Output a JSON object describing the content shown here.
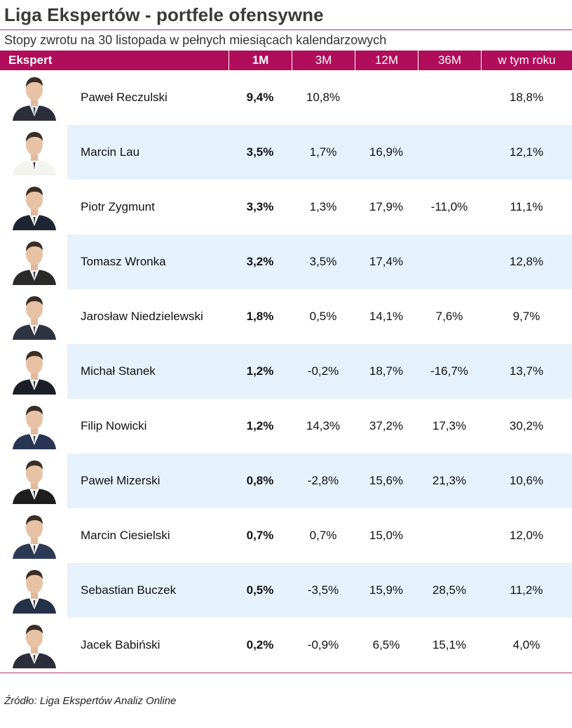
{
  "title": "Liga Ekspertów - portfele ofensywne",
  "subtitle": "Stopy zwrotu na 30 listopada w pełnych miesiącach kalendarzowych",
  "headers": {
    "expert": "Ekspert",
    "m1": "1M",
    "m3": "3M",
    "m12": "12M",
    "m36": "36M",
    "ytd": "w tym roku"
  },
  "rows": [
    {
      "name": "Paweł Reczulski",
      "m1": "9,4%",
      "m3": "10,8%",
      "m12": "",
      "m36": "",
      "ytd": "18,8%"
    },
    {
      "name": "Marcin Lau",
      "m1": "3,5%",
      "m3": "1,7%",
      "m12": "16,9%",
      "m36": "",
      "ytd": "12,1%"
    },
    {
      "name": "Piotr Zygmunt",
      "m1": "3,3%",
      "m3": "1,3%",
      "m12": "17,9%",
      "m36": "-11,0%",
      "ytd": "11,1%"
    },
    {
      "name": "Tomasz Wronka",
      "m1": "3,2%",
      "m3": "3,5%",
      "m12": "17,4%",
      "m36": "",
      "ytd": "12,8%"
    },
    {
      "name": "Jarosław Niedzielewski",
      "m1": "1,8%",
      "m3": "0,5%",
      "m12": "14,1%",
      "m36": "7,6%",
      "ytd": "9,7%"
    },
    {
      "name": "Michał Stanek",
      "m1": "1,2%",
      "m3": "-0,2%",
      "m12": "18,7%",
      "m36": "-16,7%",
      "ytd": "13,7%"
    },
    {
      "name": "Filip Nowicki",
      "m1": "1,2%",
      "m3": "14,3%",
      "m12": "37,2%",
      "m36": "17,3%",
      "ytd": "30,2%"
    },
    {
      "name": "Paweł Mizerski",
      "m1": "0,8%",
      "m3": "-2,8%",
      "m12": "15,6%",
      "m36": "21,3%",
      "ytd": "10,6%"
    },
    {
      "name": "Marcin Ciesielski",
      "m1": "0,7%",
      "m3": "0,7%",
      "m12": "15,0%",
      "m36": "",
      "ytd": "12,0%"
    },
    {
      "name": "Sebastian Buczek",
      "m1": "0,5%",
      "m3": "-3,5%",
      "m12": "15,9%",
      "m36": "28,5%",
      "ytd": "11,2%"
    },
    {
      "name": "Jacek Babiński",
      "m1": "0,2%",
      "m3": "-0,9%",
      "m12": "6,5%",
      "m36": "15,1%",
      "ytd": "4,0%"
    }
  ],
  "source": "Źródło: Liga Ekspertów Analiz Online",
  "colors": {
    "header_bg": "#b00d5a",
    "alt_row_bg": "#e6f2fb",
    "rule": "#a8326a"
  }
}
